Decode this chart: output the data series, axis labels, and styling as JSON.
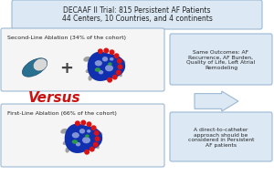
{
  "title_line1": "DECAAF II Trial: 815 Persistent AF Patients",
  "title_line2": "44 Centers, 10 Countries, and 4 continents",
  "box1_label": "Second-Line Ablation (34% of the cohort)",
  "box2_label": "First-Line Ablation (66% of the cohort)",
  "versus_text": "Versus",
  "arrow_box1_text": "Same Outcomes: AF\nRecurrence, AF Burden,\nQuality of Life, Left Atrial\nRemodeling",
  "arrow_box2_text": "A direct-to-catheter\napproach should be\nconsidered in Persistent\nAF patients",
  "background": "#ffffff",
  "title_box_color": "#dce9f5",
  "content_box_color": "#f5f5f5",
  "arrow_box_color": "#dce9f5",
  "border_color": "#9bb8d4",
  "versus_color": "#cc1111",
  "text_color": "#222222",
  "plus_color": "#444444",
  "heart_blue_dark": "#1030b0",
  "heart_blue_light": "#4060e0",
  "heart_white": "#d0d8f0",
  "heart_green": "#30b030",
  "heart_red": "#dd1111",
  "heart_gray": "#909090",
  "pill_teal": "#2a7090",
  "pill_light": "#d8d8d8"
}
